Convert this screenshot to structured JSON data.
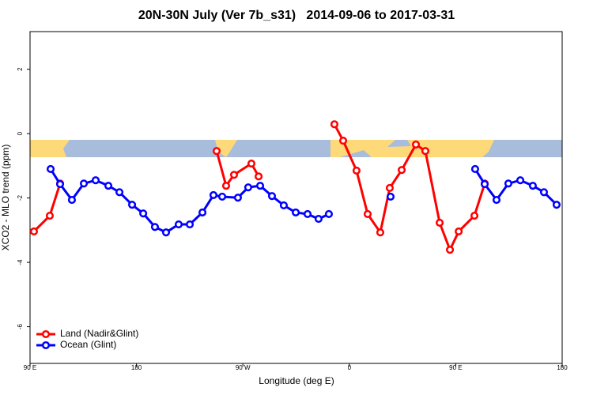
{
  "chart_data": {
    "type": "line",
    "title": "20N-30N July (Ver 7b_s31)   2014-09-06 to 2017-03-31",
    "x_label": "Longitude (deg E)",
    "y_label": "XCO2 - MLO trend (ppm)",
    "xlim": [
      90,
      540
    ],
    "ylim": [
      -7.14,
      3.17
    ],
    "xticks": [
      {
        "value": 90,
        "label": "90 E"
      },
      180,
      {
        "value": 270,
        "label": "90 W"
      },
      {
        "value": 360,
        "label": "0"
      },
      {
        "value": 450,
        "label": "90 E"
      },
      {
        "value": 540,
        "label": "180"
      }
    ],
    "yticks": [
      2,
      0,
      -2,
      -4,
      -6
    ],
    "legend": "bottom-left",
    "series": [
      {
        "name": "Land (Nadir&Glint)",
        "color": "#ff0000",
        "x": [
          93.3,
          106.7,
          115.4,
          null,
          247.8,
          255.8,
          262.5,
          277.2,
          283.3,
          null,
          347.4,
          354.8,
          366.1,
          375.5,
          386.2,
          394.2,
          404.3,
          416.3,
          424.3,
          436.4,
          445.1,
          452.5,
          465.8,
          474.5
        ],
        "values": [
          -3.04,
          -2.55,
          -1.55,
          null,
          -0.54,
          -1.62,
          -1.28,
          -0.93,
          -1.33,
          null,
          0.29,
          -0.22,
          -1.15,
          -2.5,
          -3.07,
          -1.69,
          -1.13,
          -0.34,
          -0.54,
          -2.77,
          -3.61,
          -3.04,
          -2.55,
          -1.55
        ]
      },
      {
        "name": "Ocean (Glint)",
        "color": "#0000ff",
        "x": [
          107.4,
          115.4,
          125.4,
          135.5,
          145.5,
          156.2,
          165.6,
          176.3,
          185.7,
          195.6,
          205.0,
          215.7,
          225.1,
          235.8,
          245.1,
          252.5,
          265.8,
          274.5,
          284.6,
          294.6,
          304.6,
          314.7,
          324.7,
          334.0,
          342.7,
          null,
          394.9,
          null,
          466.4,
          474.5,
          484.5,
          494.5,
          504.6,
          515.2,
          524.6,
          535.3
        ],
        "values": [
          -1.1,
          -1.57,
          -2.06,
          -1.55,
          -1.45,
          -1.62,
          -1.82,
          -2.21,
          -2.48,
          -2.9,
          -3.07,
          -2.82,
          -2.82,
          -2.45,
          -1.91,
          -1.96,
          -1.99,
          -1.67,
          -1.62,
          -1.94,
          -2.23,
          -2.45,
          -2.5,
          -2.65,
          -2.5,
          null,
          -1.96,
          null,
          -1.1,
          -1.57,
          -2.06,
          -1.55,
          -1.45,
          -1.62,
          -1.82,
          -2.21
        ]
      }
    ]
  }
}
